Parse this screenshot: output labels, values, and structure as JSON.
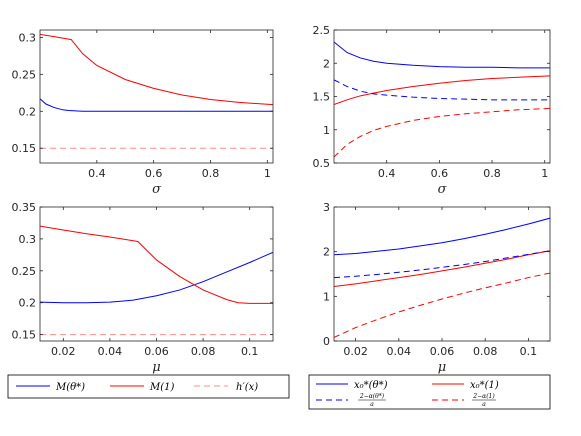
{
  "chart_data": [
    {
      "type": "line",
      "xlabel": "σ",
      "xlim": [
        0.2,
        1.02
      ],
      "ylim": [
        0.13,
        0.31
      ],
      "xticks": [
        0.4,
        0.6,
        0.8,
        1
      ],
      "xtick_labels": [
        "0.4",
        "0.6",
        "0.8",
        "1"
      ],
      "yticks": [
        0.15,
        0.2,
        0.25,
        0.3
      ],
      "ytick_labels": [
        "0.15",
        "0.2",
        "0.25",
        "0.3"
      ],
      "series": [
        {
          "color": "#0000ff",
          "dash": "solid",
          "x": [
            0.2,
            0.22,
            0.25,
            0.28,
            0.3,
            0.35,
            0.4,
            0.5,
            0.6,
            0.7,
            0.8,
            0.9,
            1.02
          ],
          "y": [
            0.217,
            0.21,
            0.205,
            0.202,
            0.201,
            0.2,
            0.2,
            0.2,
            0.2,
            0.2,
            0.2,
            0.2,
            0.2
          ]
        },
        {
          "color": "#ff0000",
          "dash": "solid",
          "x": [
            0.2,
            0.25,
            0.31,
            0.35,
            0.4,
            0.5,
            0.6,
            0.7,
            0.8,
            0.9,
            1.02
          ],
          "y": [
            0.304,
            0.301,
            0.297,
            0.278,
            0.262,
            0.243,
            0.231,
            0.222,
            0.216,
            0.212,
            0.209
          ]
        },
        {
          "color": "#ff8c8c",
          "dash": "dashed",
          "x": [
            0.2,
            1.02
          ],
          "y": [
            0.15,
            0.15
          ]
        }
      ]
    },
    {
      "type": "line",
      "xlabel": "σ",
      "xlim": [
        0.2,
        1.02
      ],
      "ylim": [
        0.5,
        2.5
      ],
      "xticks": [
        0.4,
        0.6,
        0.8,
        1
      ],
      "xtick_labels": [
        "0.4",
        "0.6",
        "0.8",
        "1"
      ],
      "yticks": [
        0.5,
        1,
        1.5,
        2,
        2.5
      ],
      "ytick_labels": [
        "0.5",
        "1",
        "1.5",
        "2",
        "2.5"
      ],
      "series": [
        {
          "color": "#0000ff",
          "dash": "solid",
          "x": [
            0.2,
            0.25,
            0.3,
            0.35,
            0.4,
            0.5,
            0.6,
            0.7,
            0.8,
            0.9,
            1.02
          ],
          "y": [
            2.32,
            2.16,
            2.08,
            2.03,
            2.0,
            1.97,
            1.95,
            1.94,
            1.94,
            1.93,
            1.93
          ]
        },
        {
          "color": "#ff0000",
          "dash": "solid",
          "x": [
            0.2,
            0.25,
            0.3,
            0.35,
            0.4,
            0.5,
            0.6,
            0.7,
            0.8,
            0.9,
            1.02
          ],
          "y": [
            1.38,
            1.45,
            1.51,
            1.55,
            1.59,
            1.65,
            1.7,
            1.74,
            1.77,
            1.79,
            1.81
          ]
        },
        {
          "color": "#0000ff",
          "dash": "dashed",
          "x": [
            0.2,
            0.25,
            0.3,
            0.35,
            0.4,
            0.5,
            0.6,
            0.7,
            0.8,
            0.9,
            1.02
          ],
          "y": [
            1.75,
            1.65,
            1.58,
            1.54,
            1.52,
            1.49,
            1.47,
            1.46,
            1.45,
            1.45,
            1.45
          ]
        },
        {
          "color": "#ff0000",
          "dash": "dashed",
          "x": [
            0.2,
            0.25,
            0.3,
            0.35,
            0.4,
            0.5,
            0.6,
            0.7,
            0.8,
            0.9,
            1.02
          ],
          "y": [
            0.59,
            0.78,
            0.9,
            0.99,
            1.05,
            1.14,
            1.2,
            1.24,
            1.27,
            1.3,
            1.32
          ]
        }
      ]
    },
    {
      "type": "line",
      "xlabel": "μ",
      "xlim": [
        0.01,
        0.11
      ],
      "ylim": [
        0.14,
        0.35
      ],
      "xticks": [
        0.02,
        0.04,
        0.06,
        0.08,
        0.1
      ],
      "xtick_labels": [
        "0.02",
        "0.04",
        "0.06",
        "0.08",
        "0.1"
      ],
      "yticks": [
        0.15,
        0.2,
        0.25,
        0.3,
        0.35
      ],
      "ytick_labels": [
        "0.15",
        "0.2",
        "0.25",
        "0.3",
        "0.35"
      ],
      "series": [
        {
          "color": "#0000ff",
          "dash": "solid",
          "x": [
            0.01,
            0.02,
            0.03,
            0.04,
            0.05,
            0.06,
            0.07,
            0.08,
            0.09,
            0.1,
            0.11
          ],
          "y": [
            0.201,
            0.2,
            0.2,
            0.201,
            0.204,
            0.211,
            0.22,
            0.233,
            0.248,
            0.263,
            0.279
          ]
        },
        {
          "color": "#ff0000",
          "dash": "solid",
          "x": [
            0.01,
            0.02,
            0.03,
            0.04,
            0.052,
            0.06,
            0.07,
            0.08,
            0.09,
            0.095,
            0.1,
            0.11
          ],
          "y": [
            0.32,
            0.314,
            0.308,
            0.303,
            0.296,
            0.267,
            0.241,
            0.22,
            0.205,
            0.2,
            0.199,
            0.199
          ]
        },
        {
          "color": "#ff8c8c",
          "dash": "dashed",
          "x": [
            0.01,
            0.11
          ],
          "y": [
            0.15,
            0.15
          ]
        }
      ]
    },
    {
      "type": "line",
      "xlabel": "μ",
      "xlim": [
        0.01,
        0.11
      ],
      "ylim": [
        0,
        3
      ],
      "xticks": [
        0.02,
        0.04,
        0.06,
        0.08,
        0.1
      ],
      "xtick_labels": [
        "0.02",
        "0.04",
        "0.06",
        "0.08",
        "0.1"
      ],
      "yticks": [
        0,
        1,
        2,
        3
      ],
      "ytick_labels": [
        "0",
        "1",
        "2",
        "3"
      ],
      "series": [
        {
          "color": "#0000ff",
          "dash": "solid",
          "x": [
            0.01,
            0.02,
            0.03,
            0.04,
            0.05,
            0.06,
            0.07,
            0.08,
            0.09,
            0.1,
            0.11
          ],
          "y": [
            1.93,
            1.96,
            2.01,
            2.06,
            2.13,
            2.2,
            2.29,
            2.39,
            2.5,
            2.62,
            2.75
          ]
        },
        {
          "color": "#ff0000",
          "dash": "solid",
          "x": [
            0.01,
            0.02,
            0.03,
            0.04,
            0.05,
            0.06,
            0.07,
            0.08,
            0.09,
            0.1,
            0.11
          ],
          "y": [
            1.22,
            1.28,
            1.35,
            1.42,
            1.49,
            1.57,
            1.65,
            1.74,
            1.83,
            1.93,
            2.02
          ]
        },
        {
          "color": "#0000ff",
          "dash": "dashed",
          "x": [
            0.01,
            0.02,
            0.03,
            0.04,
            0.05,
            0.06,
            0.07,
            0.08,
            0.09,
            0.1,
            0.11
          ],
          "y": [
            1.42,
            1.45,
            1.49,
            1.54,
            1.59,
            1.65,
            1.71,
            1.78,
            1.86,
            1.94,
            2.02
          ]
        },
        {
          "color": "#ff0000",
          "dash": "dashed",
          "x": [
            0.01,
            0.02,
            0.03,
            0.04,
            0.05,
            0.06,
            0.07,
            0.08,
            0.09,
            0.1,
            0.11
          ],
          "y": [
            0.08,
            0.3,
            0.48,
            0.65,
            0.8,
            0.94,
            1.07,
            1.19,
            1.3,
            1.42,
            1.52
          ]
        }
      ]
    }
  ],
  "legend_left": [
    {
      "label": "M(θ*)",
      "color": "#0000ff",
      "dash": "solid"
    },
    {
      "label": "M(1)",
      "color": "#ff0000",
      "dash": "solid"
    },
    {
      "label": "h′(x)",
      "color": "#ff8c8c",
      "dash": "dashed"
    }
  ],
  "legend_right": [
    {
      "label": "x₀*(θ*)",
      "color": "#0000ff",
      "dash": "solid"
    },
    {
      "label": "x₀*(1)",
      "color": "#ff0000",
      "dash": "solid"
    },
    {
      "numerator": "2−α(θ*)",
      "denominator": "a",
      "color": "#0000ff",
      "dash": "dashed"
    },
    {
      "numerator": "2−α(1)",
      "denominator": "a",
      "color": "#ff0000",
      "dash": "dashed"
    }
  ]
}
